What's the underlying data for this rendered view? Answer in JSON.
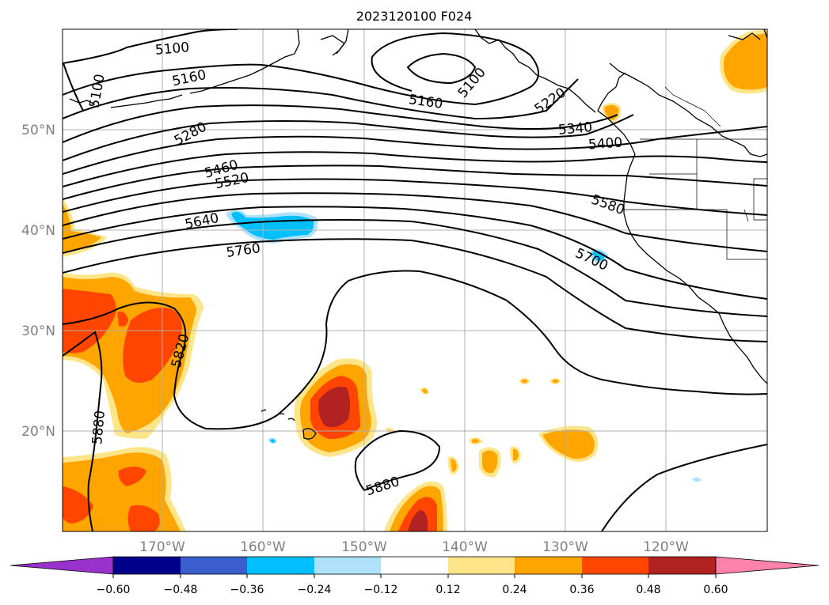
{
  "title": "2023120100 F024",
  "map": {
    "lat_labels": [
      "50°N",
      "40°N",
      "30°N",
      "20°N"
    ],
    "lon_labels": [
      "170°W",
      "160°W",
      "150°W",
      "140°W",
      "130°W",
      "120°W"
    ],
    "contour_labels": [
      "5100",
      "5100",
      "5160",
      "5100",
      "5160",
      "5220",
      "5280",
      "5340",
      "5400",
      "5460",
      "5520",
      "5580",
      "5640",
      "5700",
      "5760",
      "5820",
      "5880",
      "5880"
    ]
  },
  "colorbar": {
    "ticks": [
      "−0.60",
      "−0.48",
      "−0.36",
      "−0.24",
      "−0.12",
      "0.12",
      "0.24",
      "0.36",
      "0.48",
      "0.60"
    ],
    "colors": [
      "#9932cc",
      "#00008b",
      "#3a5fcd",
      "#00bfff",
      "#afe1fa",
      "#ffffff",
      "#ffe58a",
      "#ffa500",
      "#ff4500",
      "#b22222",
      "#ff82ab"
    ]
  }
}
